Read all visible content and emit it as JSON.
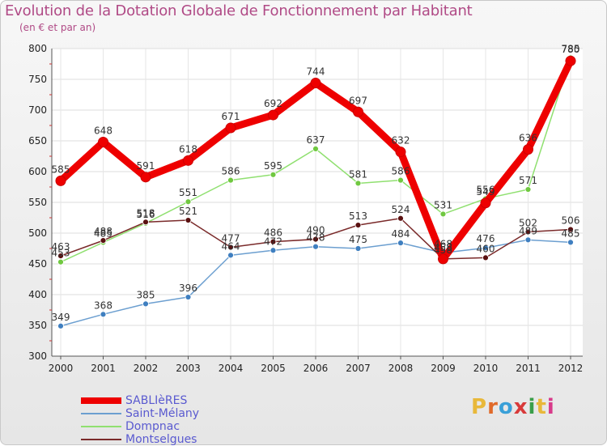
{
  "header": {
    "title": "Evolution de la Dotation Globale de Fonctionnement par Habitant",
    "subtitle": "(en € et par an)"
  },
  "logo": {
    "text": "Proxiti",
    "colors": [
      "#e8b83a",
      "#e06a2a",
      "#3aa0d8",
      "#d83a3a",
      "#3a9e4a",
      "#e8b83a",
      "#d83a8a"
    ]
  },
  "chart_data": {
    "type": "line",
    "title": "Evolution de la Dotation Globale de Fonctionnement par Habitant",
    "subtitle": "(en € et par an)",
    "xlabel": "",
    "ylabel": "",
    "ylim": [
      300,
      800
    ],
    "yticks": [
      300,
      350,
      400,
      450,
      500,
      550,
      600,
      650,
      700,
      750,
      800
    ],
    "grid": true,
    "legend_position": "bottom-left",
    "categories": [
      "2000",
      "2001",
      "2002",
      "2003",
      "2004",
      "2005",
      "2006",
      "2007",
      "2008",
      "2009",
      "2010",
      "2011",
      "2012"
    ],
    "series": [
      {
        "name": "SABLIèRES",
        "color": "#ee0000",
        "marker": "#ee0000",
        "thick": true,
        "values": [
          585,
          648,
          591,
          618,
          671,
          692,
          744,
          697,
          632,
          458,
          549,
          636,
          780
        ],
        "labels": [
          "585",
          "648",
          "591",
          "618",
          "671",
          "692",
          "744",
          "697",
          "632",
          "458",
          "549",
          "636",
          "780"
        ]
      },
      {
        "name": "Saint-Mélany",
        "color": "#6c9fd0",
        "marker": "#3f7fc0",
        "thick": false,
        "values": [
          349,
          368,
          385,
          396,
          464,
          472,
          478,
          475,
          484,
          468,
          476,
          489,
          485
        ],
        "labels": [
          "349",
          "368",
          "385",
          "396",
          "464",
          "472",
          "478",
          "475",
          "484",
          "468",
          "476",
          "489",
          "485"
        ]
      },
      {
        "name": "Dompnac",
        "color": "#90e070",
        "marker": "#70c840",
        "thick": false,
        "values": [
          453,
          485,
          516,
          551,
          586,
          595,
          637,
          581,
          586,
          531,
          556,
          571,
          785
        ],
        "labels": [
          "453",
          "485",
          "516",
          "551",
          "586",
          "595",
          "637",
          "581",
          "586",
          "531",
          "556",
          "571",
          "785"
        ]
      },
      {
        "name": "Montselgues",
        "color": "#7a2a2a",
        "marker": "#5a1010",
        "thick": false,
        "values": [
          463,
          488,
          518,
          521,
          477,
          486,
          490,
          513,
          524,
          458,
          460,
          502,
          506
        ],
        "labels": [
          "463",
          "488",
          "518",
          "521",
          "477",
          "486",
          "490",
          "513",
          "524",
          "458",
          "460",
          "502",
          "506"
        ]
      }
    ]
  }
}
